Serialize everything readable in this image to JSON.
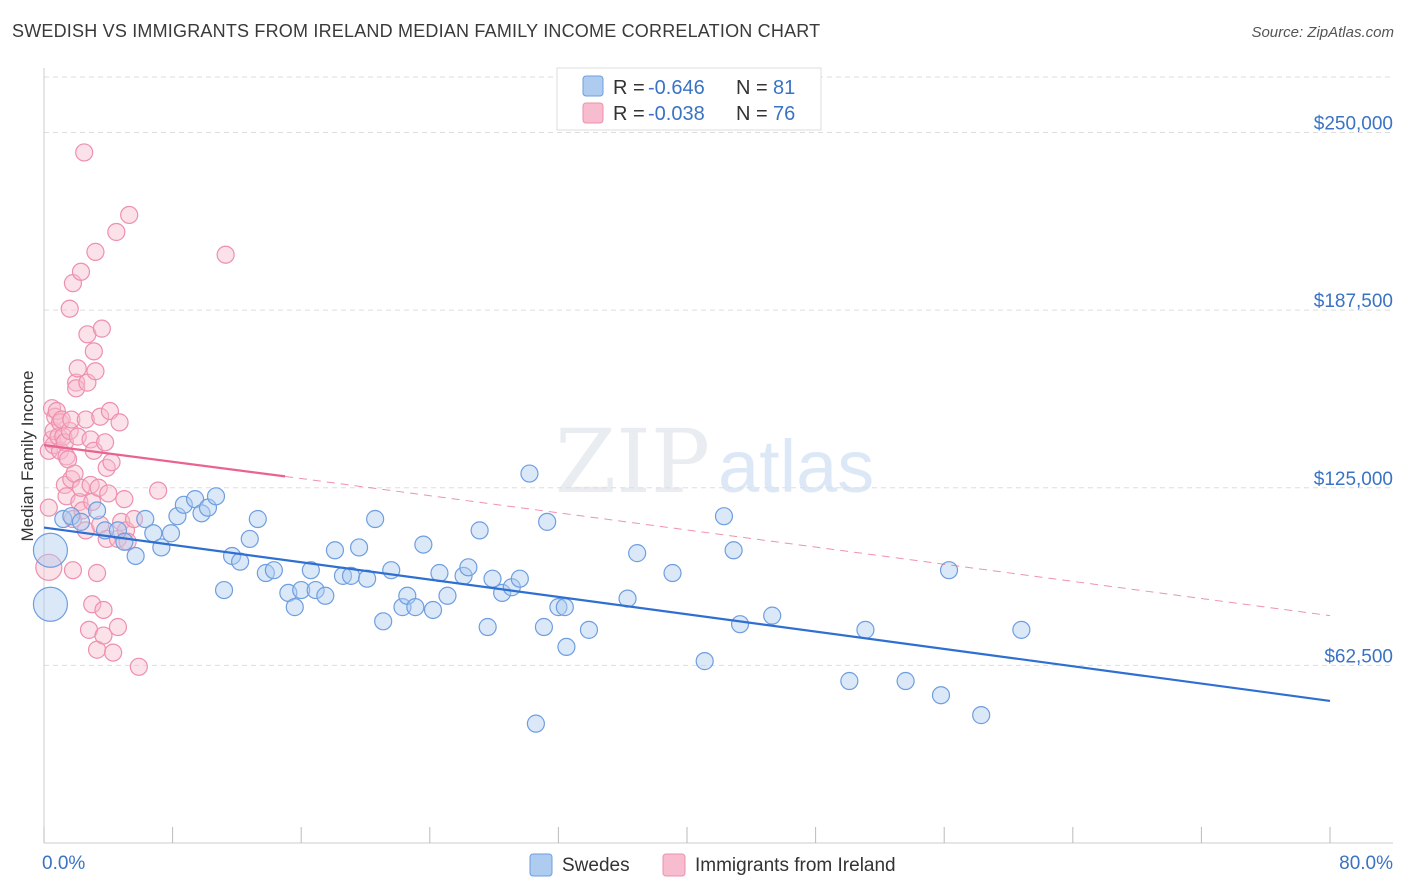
{
  "title": "SWEDISH VS IMMIGRANTS FROM IRELAND MEDIAN FAMILY INCOME CORRELATION CHART",
  "source": "Source: ZipAtlas.com",
  "colors": {
    "blue_fill": "#aecbf0",
    "blue_stroke": "#6f9ee0",
    "blue_line": "#2e6fd1",
    "pink_fill": "#f7bccd",
    "pink_stroke": "#ee8faf",
    "pink_line": "#e8648e",
    "grid": "#dddddd",
    "label": "#3a73c4"
  },
  "legend": {
    "r_label": "R =",
    "n_label": "N =",
    "series": [
      {
        "name": "Swedes",
        "r": "-0.646",
        "n": "81"
      },
      {
        "name": "Immigrants from Ireland",
        "r": "-0.038",
        "n": "76"
      }
    ]
  },
  "watermark": {
    "zip": "ZIP",
    "atlas": "atlas"
  },
  "chart_data": {
    "type": "scatter",
    "title": "SWEDISH VS IMMIGRANTS FROM IRELAND MEDIAN FAMILY INCOME CORRELATION CHART",
    "xlabel": "",
    "ylabel": "Median Family Income",
    "xlim": [
      0,
      80
    ],
    "ylim": [
      0,
      262500
    ],
    "x_tick_labels": {
      "min": "0.0%",
      "max": "80.0%"
    },
    "y_ticks": [
      62500,
      125000,
      187500,
      250000
    ],
    "y_tick_labels": [
      "$62,500",
      "$125,000",
      "$187,500",
      "$250,000"
    ],
    "series": [
      {
        "name": "Swedes",
        "trend": {
          "x": [
            0,
            80
          ],
          "y": [
            111000,
            50000
          ],
          "dashed_to": null
        },
        "points": [
          [
            0.4,
            103000,
            3
          ],
          [
            0.4,
            84000,
            3
          ],
          [
            1.2,
            114000,
            1
          ],
          [
            1.7,
            115000,
            1
          ],
          [
            2.3,
            113000,
            1
          ],
          [
            3.3,
            117000,
            1
          ],
          [
            3.8,
            110000,
            1
          ],
          [
            4.6,
            110000,
            1
          ],
          [
            5.0,
            106000,
            1
          ],
          [
            5.7,
            101000,
            1
          ],
          [
            6.3,
            114000,
            1
          ],
          [
            6.8,
            109000,
            1
          ],
          [
            7.3,
            104000,
            1
          ],
          [
            7.9,
            109000,
            1
          ],
          [
            8.3,
            115000,
            1
          ],
          [
            8.7,
            119000,
            1
          ],
          [
            9.4,
            121000,
            1
          ],
          [
            9.8,
            116000,
            1
          ],
          [
            10.2,
            118000,
            1
          ],
          [
            10.7,
            122000,
            1
          ],
          [
            11.2,
            89000,
            1
          ],
          [
            11.7,
            101000,
            1
          ],
          [
            12.2,
            99000,
            1
          ],
          [
            12.8,
            107000,
            1
          ],
          [
            13.3,
            114000,
            1
          ],
          [
            13.8,
            95000,
            1
          ],
          [
            14.3,
            96000,
            1
          ],
          [
            15.2,
            88000,
            1
          ],
          [
            15.6,
            83000,
            1
          ],
          [
            16.0,
            89000,
            1
          ],
          [
            16.6,
            96000,
            1
          ],
          [
            16.9,
            89000,
            1
          ],
          [
            17.5,
            87000,
            1
          ],
          [
            18.1,
            103000,
            1
          ],
          [
            18.6,
            94000,
            1
          ],
          [
            19.1,
            94000,
            1
          ],
          [
            19.6,
            104000,
            1
          ],
          [
            20.1,
            93000,
            1
          ],
          [
            20.6,
            114000,
            1
          ],
          [
            21.1,
            78000,
            1
          ],
          [
            21.6,
            96000,
            1
          ],
          [
            22.3,
            83000,
            1
          ],
          [
            22.6,
            87000,
            1
          ],
          [
            23.1,
            83000,
            1
          ],
          [
            23.6,
            105000,
            1
          ],
          [
            24.2,
            82000,
            1
          ],
          [
            24.6,
            95000,
            1
          ],
          [
            25.1,
            87000,
            1
          ],
          [
            26.1,
            94000,
            1
          ],
          [
            26.4,
            97000,
            1
          ],
          [
            27.1,
            110000,
            1
          ],
          [
            27.6,
            76000,
            1
          ],
          [
            27.9,
            93000,
            1
          ],
          [
            28.5,
            88000,
            1
          ],
          [
            29.1,
            90000,
            1
          ],
          [
            29.6,
            93000,
            1
          ],
          [
            30.2,
            130000,
            1
          ],
          [
            30.6,
            42000,
            1
          ],
          [
            31.1,
            76000,
            1
          ],
          [
            31.3,
            113000,
            1
          ],
          [
            32.0,
            83000,
            1
          ],
          [
            32.4,
            83000,
            1
          ],
          [
            32.5,
            69000,
            1
          ],
          [
            33.9,
            75000,
            1
          ],
          [
            36.3,
            86000,
            1
          ],
          [
            36.9,
            102000,
            1
          ],
          [
            39.1,
            95000,
            1
          ],
          [
            41.1,
            64000,
            1
          ],
          [
            42.3,
            115000,
            1
          ],
          [
            42.9,
            103000,
            1
          ],
          [
            43.3,
            77000,
            1
          ],
          [
            45.3,
            80000,
            1
          ],
          [
            50.1,
            57000,
            1
          ],
          [
            51.1,
            75000,
            1
          ],
          [
            53.6,
            57000,
            1
          ],
          [
            55.8,
            52000,
            1
          ],
          [
            56.3,
            96000,
            1
          ],
          [
            58.3,
            45000,
            1
          ],
          [
            60.8,
            75000,
            1
          ]
        ]
      },
      {
        "name": "Immigrants from Ireland",
        "trend": {
          "x": [
            0,
            15
          ],
          "y": [
            140000,
            129000
          ],
          "dashed_to": {
            "x": 80,
            "y": 80000
          }
        },
        "points": [
          [
            0.3,
            118000,
            1
          ],
          [
            0.3,
            138000,
            1
          ],
          [
            0.3,
            97000,
            2
          ],
          [
            0.5,
            153000,
            1
          ],
          [
            0.5,
            142000,
            1
          ],
          [
            0.6,
            140000,
            1
          ],
          [
            0.6,
            145000,
            1
          ],
          [
            0.7,
            150000,
            1
          ],
          [
            0.8,
            152000,
            1
          ],
          [
            0.9,
            143000,
            1
          ],
          [
            1.0,
            148000,
            1
          ],
          [
            1.0,
            138000,
            1
          ],
          [
            1.1,
            149000,
            1
          ],
          [
            1.2,
            143000,
            1
          ],
          [
            1.3,
            141000,
            1
          ],
          [
            1.3,
            126000,
            1
          ],
          [
            1.4,
            136000,
            1
          ],
          [
            1.4,
            122000,
            1
          ],
          [
            1.5,
            135000,
            1
          ],
          [
            1.6,
            145000,
            1
          ],
          [
            1.6,
            188000,
            1
          ],
          [
            1.7,
            128000,
            1
          ],
          [
            1.7,
            149000,
            1
          ],
          [
            1.8,
            197000,
            1
          ],
          [
            1.8,
            114000,
            1
          ],
          [
            1.8,
            96000,
            1
          ],
          [
            1.9,
            130000,
            1
          ],
          [
            2.0,
            162000,
            1
          ],
          [
            2.0,
            160000,
            1
          ],
          [
            2.1,
            143000,
            1
          ],
          [
            2.1,
            167000,
            1
          ],
          [
            2.2,
            120000,
            1
          ],
          [
            2.3,
            201000,
            1
          ],
          [
            2.3,
            125000,
            1
          ],
          [
            2.4,
            117000,
            1
          ],
          [
            2.5,
            243000,
            1
          ],
          [
            2.6,
            149000,
            1
          ],
          [
            2.6,
            110000,
            1
          ],
          [
            2.7,
            162000,
            1
          ],
          [
            2.7,
            179000,
            1
          ],
          [
            2.8,
            75000,
            1
          ],
          [
            2.9,
            142000,
            1
          ],
          [
            2.9,
            126000,
            1
          ],
          [
            3.0,
            84000,
            1
          ],
          [
            3.0,
            120000,
            1
          ],
          [
            3.1,
            173000,
            1
          ],
          [
            3.1,
            138000,
            1
          ],
          [
            3.2,
            208000,
            1
          ],
          [
            3.2,
            166000,
            1
          ],
          [
            3.3,
            68000,
            1
          ],
          [
            3.3,
            95000,
            1
          ],
          [
            3.4,
            125000,
            1
          ],
          [
            3.5,
            150000,
            1
          ],
          [
            3.5,
            112000,
            1
          ],
          [
            3.6,
            181000,
            1
          ],
          [
            3.7,
            82000,
            1
          ],
          [
            3.7,
            73000,
            1
          ],
          [
            3.8,
            141000,
            1
          ],
          [
            3.9,
            132000,
            1
          ],
          [
            3.9,
            107000,
            1
          ],
          [
            4.0,
            123000,
            1
          ],
          [
            4.1,
            152000,
            1
          ],
          [
            4.2,
            134000,
            1
          ],
          [
            4.3,
            67000,
            1
          ],
          [
            4.5,
            215000,
            1
          ],
          [
            4.6,
            107000,
            1
          ],
          [
            4.6,
            76000,
            1
          ],
          [
            4.7,
            148000,
            1
          ],
          [
            4.8,
            113000,
            1
          ],
          [
            5.0,
            121000,
            1
          ],
          [
            5.1,
            110000,
            1
          ],
          [
            5.2,
            106000,
            1
          ],
          [
            5.3,
            221000,
            1
          ],
          [
            5.6,
            114000,
            1
          ],
          [
            5.9,
            62000,
            1
          ],
          [
            7.1,
            124000,
            1
          ],
          [
            11.3,
            207000,
            1
          ]
        ]
      }
    ]
  }
}
